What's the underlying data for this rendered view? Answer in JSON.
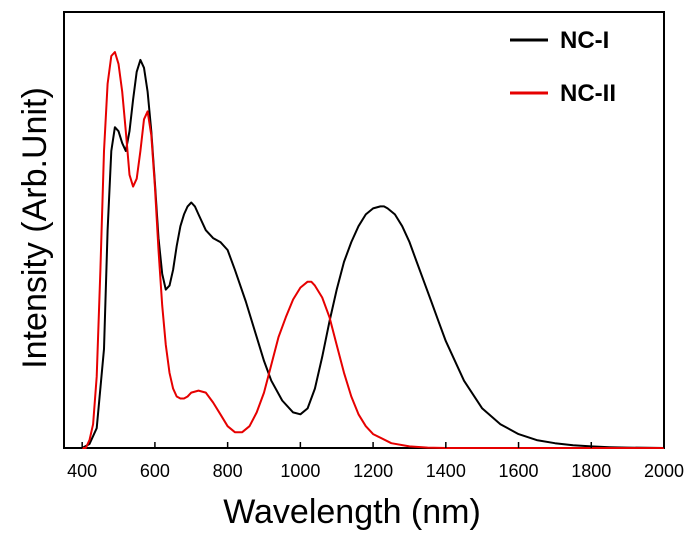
{
  "chart_data": {
    "type": "line",
    "xlabel": "Wavelength (nm)",
    "ylabel": "Intensity (Arb.Unit)",
    "xlim": [
      350,
      2000
    ],
    "ylim": [
      0,
      1.0
    ],
    "xticks": [
      400,
      600,
      800,
      1000,
      1200,
      1400,
      1600,
      1800,
      2000
    ],
    "xtick_labels": [
      "400",
      "600",
      "800",
      "1000",
      "1200",
      "1400",
      "1600",
      "1800",
      "2000"
    ],
    "yticks_shown": false,
    "grid": false,
    "legend_position": "top-right",
    "series": [
      {
        "name": "NC-I",
        "color": "#000000",
        "x": [
          400,
          420,
          440,
          460,
          470,
          480,
          490,
          500,
          510,
          520,
          530,
          540,
          550,
          560,
          570,
          580,
          590,
          600,
          610,
          620,
          630,
          640,
          650,
          660,
          670,
          680,
          690,
          700,
          710,
          720,
          740,
          760,
          780,
          800,
          820,
          850,
          880,
          900,
          920,
          950,
          980,
          1000,
          1020,
          1040,
          1060,
          1080,
          1100,
          1120,
          1140,
          1160,
          1180,
          1200,
          1220,
          1230,
          1240,
          1260,
          1280,
          1300,
          1320,
          1340,
          1360,
          1380,
          1400,
          1450,
          1500,
          1550,
          1600,
          1650,
          1700,
          1750,
          1800,
          1850,
          1900,
          1950,
          2000
        ],
        "y": [
          0.0,
          0.01,
          0.05,
          0.25,
          0.55,
          0.75,
          0.81,
          0.8,
          0.77,
          0.75,
          0.8,
          0.88,
          0.95,
          0.98,
          0.96,
          0.9,
          0.8,
          0.67,
          0.53,
          0.44,
          0.4,
          0.41,
          0.45,
          0.51,
          0.56,
          0.59,
          0.61,
          0.62,
          0.61,
          0.59,
          0.55,
          0.53,
          0.52,
          0.5,
          0.45,
          0.37,
          0.28,
          0.22,
          0.17,
          0.12,
          0.09,
          0.085,
          0.1,
          0.15,
          0.23,
          0.32,
          0.4,
          0.47,
          0.52,
          0.56,
          0.59,
          0.605,
          0.61,
          0.61,
          0.605,
          0.59,
          0.56,
          0.52,
          0.47,
          0.42,
          0.37,
          0.32,
          0.27,
          0.17,
          0.1,
          0.06,
          0.035,
          0.02,
          0.012,
          0.007,
          0.004,
          0.002,
          0.001,
          0.0005,
          0.0
        ]
      },
      {
        "name": "NC-II",
        "color": "#e60000",
        "x": [
          400,
          410,
          420,
          430,
          440,
          450,
          460,
          470,
          480,
          490,
          500,
          510,
          520,
          530,
          540,
          550,
          560,
          570,
          580,
          590,
          600,
          610,
          620,
          630,
          640,
          650,
          660,
          670,
          680,
          690,
          700,
          720,
          740,
          760,
          780,
          800,
          820,
          840,
          860,
          880,
          900,
          920,
          940,
          960,
          980,
          1000,
          1020,
          1030,
          1040,
          1060,
          1080,
          1100,
          1120,
          1140,
          1160,
          1180,
          1200,
          1250,
          1300,
          1350,
          1400,
          1450,
          1500,
          2000
        ],
        "y": [
          0.0,
          0.0,
          0.02,
          0.06,
          0.18,
          0.45,
          0.75,
          0.92,
          0.99,
          1.0,
          0.97,
          0.9,
          0.8,
          0.69,
          0.66,
          0.68,
          0.75,
          0.83,
          0.85,
          0.79,
          0.66,
          0.5,
          0.36,
          0.26,
          0.19,
          0.15,
          0.13,
          0.125,
          0.125,
          0.13,
          0.14,
          0.145,
          0.14,
          0.115,
          0.085,
          0.055,
          0.04,
          0.04,
          0.055,
          0.09,
          0.14,
          0.21,
          0.28,
          0.33,
          0.375,
          0.405,
          0.42,
          0.42,
          0.41,
          0.38,
          0.33,
          0.26,
          0.19,
          0.13,
          0.085,
          0.055,
          0.035,
          0.012,
          0.004,
          0.001,
          0.0,
          0.0,
          0.0,
          0.0
        ]
      }
    ]
  }
}
